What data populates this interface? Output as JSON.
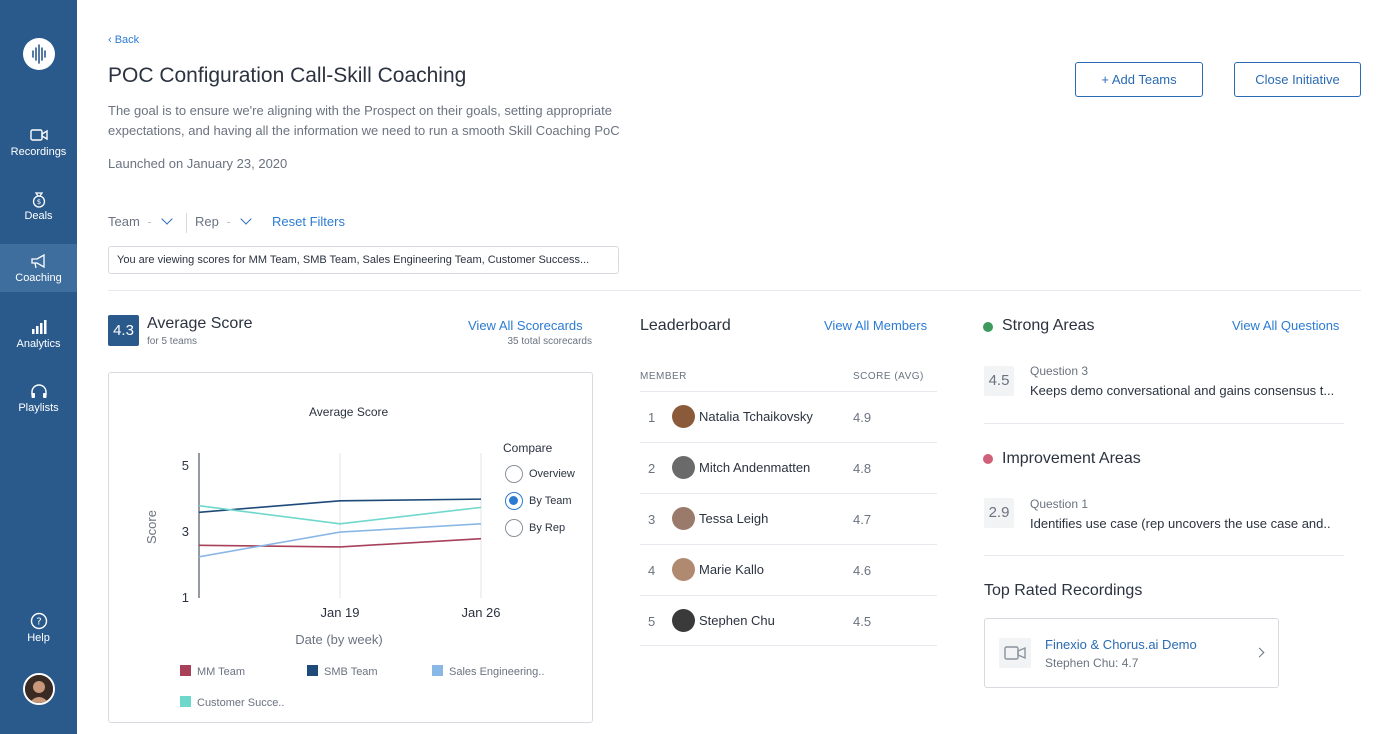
{
  "colors": {
    "sidebar_bg": "#2a5a8c",
    "accent": "#2c7bd3",
    "mm_team": "#a8405a",
    "smb_team": "#1e4a7a",
    "sales_engineering": "#8ab8e6",
    "customer_success": "#6ed8cc",
    "strong_dot": "#3d9a5c",
    "improvement_dot": "#d0607a"
  },
  "sidebar": {
    "logo_icon": "waveform-icon",
    "items": [
      {
        "label": "Recordings",
        "icon": "video-camera-icon"
      },
      {
        "label": "Deals",
        "icon": "money-bag-icon"
      },
      {
        "label": "Coaching",
        "icon": "megaphone-icon"
      },
      {
        "label": "Analytics",
        "icon": "bar-chart-icon"
      },
      {
        "label": "Playlists",
        "icon": "headphones-icon"
      }
    ],
    "help": {
      "label": "Help",
      "icon": "question-circle-icon"
    }
  },
  "header": {
    "back_label": "‹ Back",
    "title": "POC Configuration Call-Skill Coaching",
    "goal": "The goal is to ensure we're aligning with the Prospect on their goals, setting appropriate expectations, and having all the information we need to run a smooth Skill Coaching PoC",
    "launched": "Launched on January 23, 2020",
    "add_teams_label": "+ Add Teams",
    "close_initiative_label": "Close Initiative"
  },
  "filters": {
    "team_label": "Team",
    "team_value": "-",
    "rep_label": "Rep",
    "rep_value": "-",
    "reset_label": "Reset Filters",
    "viewing_text": "You are viewing scores for MM Team, SMB Team, Sales Engineering Team, Customer Success..."
  },
  "average_score": {
    "value": "4.3",
    "title": "Average Score",
    "subtitle": "for 5 teams",
    "view_all_label": "View All Scorecards",
    "scorecards_count": "35 total scorecards"
  },
  "chart_data": {
    "type": "line",
    "title": "Average Score",
    "xlabel": "Date (by week)",
    "ylabel": "Score",
    "x": [
      "",
      "Jan 19",
      "Jan 26"
    ],
    "yticks": [
      "5",
      "3",
      "1"
    ],
    "ylim": [
      1,
      5.4
    ],
    "grid": "vertical",
    "legend": "bottom",
    "series": [
      {
        "name": "MM Team",
        "values": [
          2.6,
          2.55,
          2.8
        ],
        "color": "#a8405a"
      },
      {
        "name": "SMB Team",
        "values": [
          3.6,
          3.95,
          4.0
        ],
        "color": "#1e4a7a"
      },
      {
        "name": "Sales Engineering..",
        "values": [
          2.25,
          3.0,
          3.25
        ],
        "color": "#8ab8e6"
      },
      {
        "name": "Customer Succe..",
        "values": [
          3.8,
          3.25,
          3.75
        ],
        "color": "#6ed8cc"
      }
    ]
  },
  "compare": {
    "label": "Compare",
    "options": [
      {
        "label": "Overview",
        "selected": false
      },
      {
        "label": "By Team",
        "selected": true
      },
      {
        "label": "By Rep",
        "selected": false
      }
    ]
  },
  "leaderboard": {
    "title": "Leaderboard",
    "view_all_label": "View All Members",
    "col_member": "MEMBER",
    "col_score": "SCORE (AVG)",
    "rows": [
      {
        "rank": "1",
        "name": "Natalia Tchaikovsky",
        "score": "4.9"
      },
      {
        "rank": "2",
        "name": "Mitch Andenmatten",
        "score": "4.8"
      },
      {
        "rank": "3",
        "name": "Tessa Leigh",
        "score": "4.7"
      },
      {
        "rank": "4",
        "name": "Marie Kallo",
        "score": "4.6"
      },
      {
        "rank": "5",
        "name": "Stephen Chu",
        "score": "4.5"
      }
    ]
  },
  "strong_areas": {
    "title": "Strong Areas",
    "view_all_label": "View All Questions",
    "score": "4.5",
    "question_label": "Question 3",
    "question_text": "Keeps demo conversational and gains consensus t..."
  },
  "improvement_areas": {
    "title": "Improvement Areas",
    "score": "2.9",
    "question_label": "Question 1",
    "question_text": "Identifies use case (rep uncovers the use case and.."
  },
  "top_recordings": {
    "title": "Top Rated Recordings",
    "items": [
      {
        "title": "Finexio & Chorus.ai Demo",
        "subtitle": "Stephen Chu: 4.7",
        "icon": "video-camera-icon"
      }
    ]
  }
}
